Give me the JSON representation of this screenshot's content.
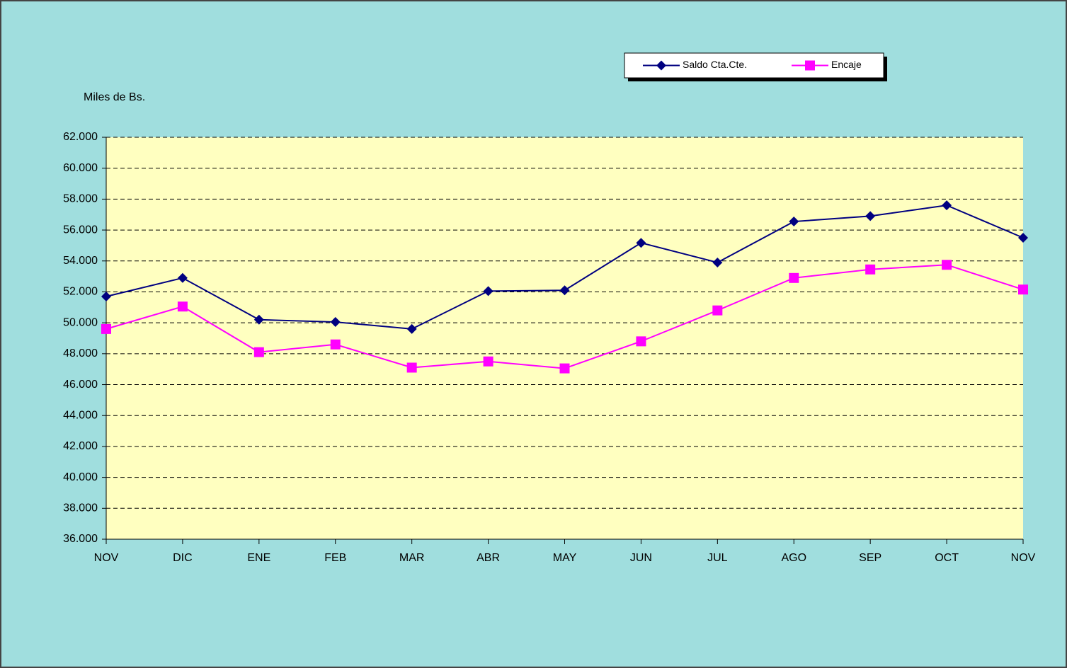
{
  "chart_data": {
    "type": "line",
    "y_label": "Miles de Bs.",
    "categories": [
      "NOV",
      "DIC",
      "ENE",
      "FEB",
      "MAR",
      "ABR",
      "MAY",
      "JUN",
      "JUL",
      "AGO",
      "SEP",
      "OCT",
      "NOV"
    ],
    "series": [
      {
        "name": "Saldo Cta.Cte.",
        "color": "#000080",
        "marker": "diamond",
        "values": [
          51700,
          52900,
          50200,
          50050,
          49600,
          52050,
          52100,
          55170,
          53900,
          56550,
          56900,
          57600,
          55500
        ]
      },
      {
        "name": "Encaje",
        "color": "#ff00ff",
        "marker": "square",
        "values": [
          49600,
          51050,
          48100,
          48600,
          47100,
          47500,
          47050,
          48800,
          50800,
          52900,
          53450,
          53750,
          52150
        ]
      }
    ],
    "ylim": [
      36000,
      62000
    ],
    "yticks": [
      {
        "value": 36000,
        "label": "36.000"
      },
      {
        "value": 38000,
        "label": "38.000"
      },
      {
        "value": 40000,
        "label": "40.000"
      },
      {
        "value": 42000,
        "label": "42.000"
      },
      {
        "value": 44000,
        "label": "44.000"
      },
      {
        "value": 46000,
        "label": "46.000"
      },
      {
        "value": 48000,
        "label": "48.000"
      },
      {
        "value": 50000,
        "label": "50.000"
      },
      {
        "value": 52000,
        "label": "52.000"
      },
      {
        "value": 54000,
        "label": "54.000"
      },
      {
        "value": 56000,
        "label": "56.000"
      },
      {
        "value": 58000,
        "label": "58.000"
      },
      {
        "value": 60000,
        "label": "60.000"
      },
      {
        "value": 62000,
        "label": "62.000"
      }
    ],
    "grid": true,
    "legend": "top-right"
  }
}
